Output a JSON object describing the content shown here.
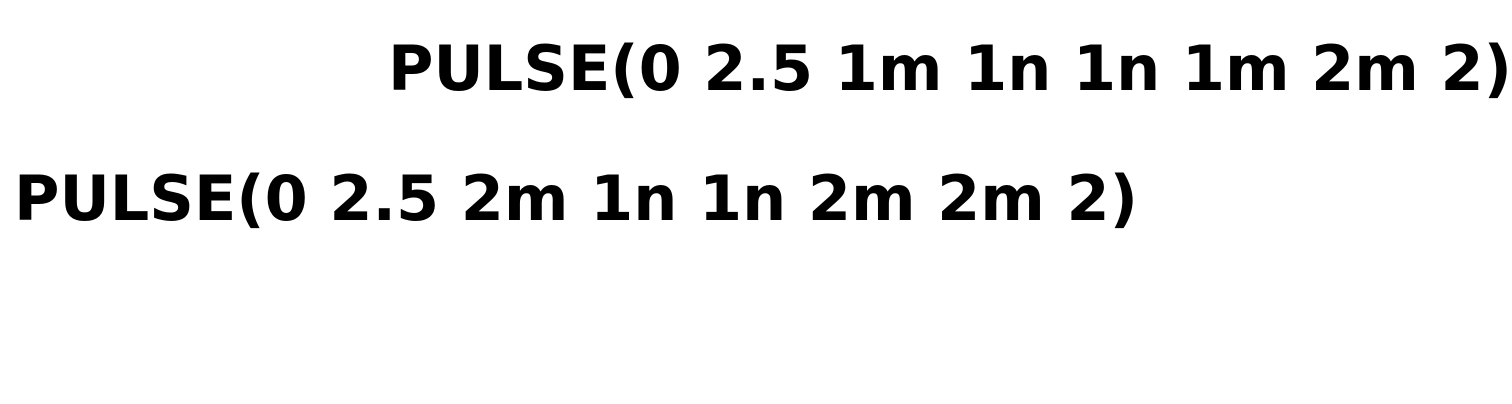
{
  "lines": [
    "PULSE(0 2.5 1m 1n 1n 1m 2m 2)",
    "PULSE(0 2.5 2m 1n 1n 2m 2m 2)"
  ]
}
